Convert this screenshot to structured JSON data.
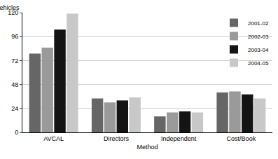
{
  "chart_data": {
    "type": "bar",
    "y_label": "vehicles",
    "x_label": "Method",
    "categories": [
      "AVCAL",
      "Directors",
      "Independent",
      "Cost/Book"
    ],
    "series": [
      {
        "name": "2001-02",
        "color": "#666666",
        "values": [
          79,
          34,
          16,
          40
        ]
      },
      {
        "name": "2002-03",
        "color": "#9a9a9a",
        "values": [
          85,
          30,
          20,
          41
        ]
      },
      {
        "name": "2003-04",
        "color": "#141414",
        "values": [
          103,
          32,
          21,
          38
        ]
      },
      {
        "name": "2004-05",
        "color": "#c8c8c8",
        "values": [
          119,
          35,
          20,
          34
        ]
      }
    ],
    "ylim": [
      0,
      120
    ],
    "yticks": [
      0,
      24,
      48,
      72,
      96,
      120
    ],
    "grid": true,
    "legend": "top-right"
  }
}
